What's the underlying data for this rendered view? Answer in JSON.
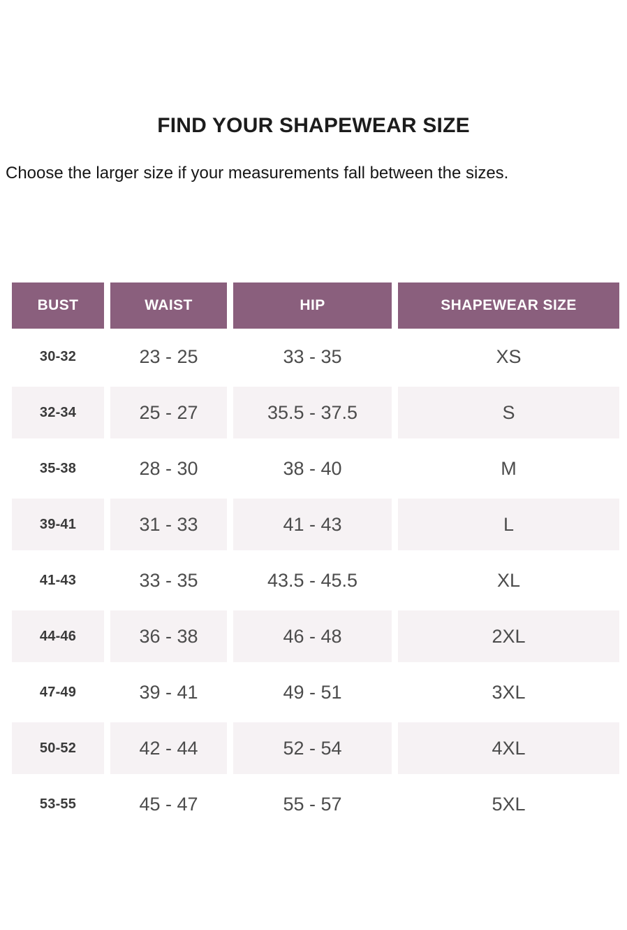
{
  "page": {
    "title": "FIND YOUR SHAPEWEAR SIZE",
    "subtitle": "Choose the larger size if your measurements fall between the sizes."
  },
  "colors": {
    "header_bg": "#8a5f7d",
    "header_text": "#ffffff",
    "stripe_bg": "#f6f2f4"
  },
  "table": {
    "headers": [
      "BUST",
      "WAIST",
      "HIP",
      "SHAPEWEAR SIZE"
    ],
    "rows": [
      {
        "bust": "30-32",
        "waist": "23 - 25",
        "hip": "33 - 35",
        "size": "XS"
      },
      {
        "bust": "32-34",
        "waist": "25 - 27",
        "hip": "35.5 - 37.5",
        "size": "S"
      },
      {
        "bust": "35-38",
        "waist": "28 - 30",
        "hip": "38 - 40",
        "size": "M"
      },
      {
        "bust": "39-41",
        "waist": "31 - 33",
        "hip": "41 - 43",
        "size": "L"
      },
      {
        "bust": "41-43",
        "waist": "33 - 35",
        "hip": "43.5 - 45.5",
        "size": "XL"
      },
      {
        "bust": "44-46",
        "waist": "36 - 38",
        "hip": "46 - 48",
        "size": "2XL"
      },
      {
        "bust": "47-49",
        "waist": "39 - 41",
        "hip": "49 - 51",
        "size": "3XL"
      },
      {
        "bust": "50-52",
        "waist": "42 - 44",
        "hip": "52 - 54",
        "size": "4XL"
      },
      {
        "bust": "53-55",
        "waist": "45 - 47",
        "hip": "55 - 57",
        "size": "5XL"
      }
    ]
  }
}
